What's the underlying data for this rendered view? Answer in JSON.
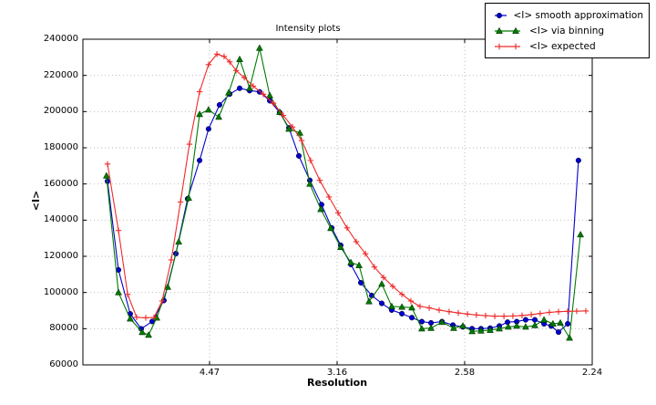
{
  "chart_data": {
    "type": "line",
    "title": "Intensity plots",
    "xlabel": "Resolution",
    "ylabel": "<I>",
    "x_axis": {
      "scale": "linear in 1/d^2 (resolution d shown in Angstrom)",
      "tick_labels": [
        "4.47",
        "3.16",
        "2.58",
        "2.24"
      ],
      "tick_positions_s2": [
        0.05,
        0.1,
        0.15,
        0.2
      ],
      "min_s2": 0.00036,
      "max_s2": 0.2
    },
    "y_axis": {
      "tick_values": [
        60000,
        80000,
        100000,
        120000,
        140000,
        160000,
        180000,
        200000,
        220000,
        240000
      ],
      "min": 60000,
      "max": 240000
    },
    "grid": "dotted",
    "legend_position": "upper right, partly outside axes",
    "series": [
      {
        "name": "<I> smooth approximation",
        "color": "#0000cc",
        "marker": "circle",
        "points": [
          [
            0.01,
            161500
          ],
          [
            0.0143,
            112500
          ],
          [
            0.0189,
            88200
          ],
          [
            0.0232,
            79900
          ],
          [
            0.0275,
            84000
          ],
          [
            0.0321,
            95600
          ],
          [
            0.0368,
            121500
          ],
          [
            0.0414,
            151800
          ],
          [
            0.0461,
            173000
          ],
          [
            0.0496,
            190400
          ],
          [
            0.0539,
            203700
          ],
          [
            0.0579,
            209700
          ],
          [
            0.0618,
            212900
          ],
          [
            0.0657,
            211600
          ],
          [
            0.0696,
            210900
          ],
          [
            0.0736,
            206000
          ],
          [
            0.0775,
            199500
          ],
          [
            0.0811,
            191000
          ],
          [
            0.085,
            175500
          ],
          [
            0.0893,
            162000
          ],
          [
            0.0939,
            148600
          ],
          [
            0.0979,
            135700
          ],
          [
            0.1014,
            126100
          ],
          [
            0.1054,
            115500
          ],
          [
            0.1093,
            105400
          ],
          [
            0.1136,
            98300
          ],
          [
            0.1175,
            94000
          ],
          [
            0.1214,
            90300
          ],
          [
            0.1254,
            88300
          ],
          [
            0.1293,
            86100
          ],
          [
            0.1332,
            83900
          ],
          [
            0.1368,
            83200
          ],
          [
            0.1411,
            83900
          ],
          [
            0.1454,
            82000
          ],
          [
            0.1493,
            81000
          ],
          [
            0.1529,
            80000
          ],
          [
            0.1564,
            80000
          ],
          [
            0.16,
            80300
          ],
          [
            0.1636,
            81500
          ],
          [
            0.1668,
            83600
          ],
          [
            0.1704,
            83900
          ],
          [
            0.1739,
            84900
          ],
          [
            0.1775,
            84900
          ],
          [
            0.1811,
            82700
          ],
          [
            0.1839,
            81500
          ],
          [
            0.1868,
            78100
          ],
          [
            0.1904,
            82700
          ],
          [
            0.1946,
            173000
          ]
        ]
      },
      {
        "name": "<I> via binning",
        "color": "#007a00",
        "marker": "triangle",
        "points": [
          [
            0.0096,
            164500
          ],
          [
            0.0143,
            100000
          ],
          [
            0.0189,
            85500
          ],
          [
            0.0236,
            78000
          ],
          [
            0.0261,
            76500
          ],
          [
            0.0293,
            86000
          ],
          [
            0.0336,
            103000
          ],
          [
            0.0379,
            128000
          ],
          [
            0.0418,
            152200
          ],
          [
            0.0461,
            198500
          ],
          [
            0.0496,
            201000
          ],
          [
            0.0536,
            197000
          ],
          [
            0.0575,
            210400
          ],
          [
            0.0618,
            228900
          ],
          [
            0.0657,
            212900
          ],
          [
            0.0696,
            235100
          ],
          [
            0.0736,
            208900
          ],
          [
            0.0775,
            199700
          ],
          [
            0.0811,
            190400
          ],
          [
            0.0854,
            188200
          ],
          [
            0.0893,
            160000
          ],
          [
            0.0936,
            146000
          ],
          [
            0.0975,
            135500
          ],
          [
            0.1014,
            125000
          ],
          [
            0.1054,
            116600
          ],
          [
            0.1086,
            115000
          ],
          [
            0.1125,
            95000
          ],
          [
            0.1175,
            104700
          ],
          [
            0.1214,
            92300
          ],
          [
            0.1254,
            92000
          ],
          [
            0.1293,
            91600
          ],
          [
            0.1332,
            80000
          ],
          [
            0.1368,
            80300
          ],
          [
            0.1411,
            83600
          ],
          [
            0.1457,
            80300
          ],
          [
            0.1493,
            81500
          ],
          [
            0.1529,
            78500
          ],
          [
            0.1564,
            78800
          ],
          [
            0.16,
            79200
          ],
          [
            0.1636,
            80000
          ],
          [
            0.1671,
            81000
          ],
          [
            0.1704,
            81500
          ],
          [
            0.1739,
            81000
          ],
          [
            0.1775,
            81800
          ],
          [
            0.1811,
            84900
          ],
          [
            0.1846,
            82700
          ],
          [
            0.1875,
            83200
          ],
          [
            0.1911,
            74900
          ],
          [
            0.1954,
            132000
          ]
        ]
      },
      {
        "name": "<I> expected",
        "color": "#ee2a2a",
        "marker": "plus",
        "points": [
          [
            0.01,
            171000
          ],
          [
            0.0143,
            134300
          ],
          [
            0.0179,
            99000
          ],
          [
            0.0214,
            86300
          ],
          [
            0.025,
            86000
          ],
          [
            0.0282,
            86200
          ],
          [
            0.0314,
            95300
          ],
          [
            0.035,
            118000
          ],
          [
            0.0386,
            150000
          ],
          [
            0.0421,
            182000
          ],
          [
            0.0461,
            211000
          ],
          [
            0.0496,
            226000
          ],
          [
            0.0529,
            231800
          ],
          [
            0.0557,
            230500
          ],
          [
            0.0579,
            227500
          ],
          [
            0.0604,
            222700
          ],
          [
            0.0636,
            218800
          ],
          [
            0.0671,
            214100
          ],
          [
            0.0711,
            209600
          ],
          [
            0.075,
            204600
          ],
          [
            0.0789,
            197900
          ],
          [
            0.0825,
            191500
          ],
          [
            0.0861,
            184000
          ],
          [
            0.0896,
            173000
          ],
          [
            0.0932,
            162000
          ],
          [
            0.0968,
            152800
          ],
          [
            0.1004,
            144000
          ],
          [
            0.1039,
            135700
          ],
          [
            0.1075,
            128100
          ],
          [
            0.1111,
            121400
          ],
          [
            0.1146,
            114100
          ],
          [
            0.1182,
            108300
          ],
          [
            0.1218,
            103400
          ],
          [
            0.1254,
            99000
          ],
          [
            0.1289,
            95300
          ],
          [
            0.1325,
            92300
          ],
          [
            0.1361,
            91500
          ],
          [
            0.14,
            90300
          ],
          [
            0.1439,
            89400
          ],
          [
            0.1475,
            88700
          ],
          [
            0.1511,
            88100
          ],
          [
            0.1546,
            87600
          ],
          [
            0.1582,
            87200
          ],
          [
            0.1618,
            86900
          ],
          [
            0.1654,
            86900
          ],
          [
            0.1689,
            87000
          ],
          [
            0.1725,
            87300
          ],
          [
            0.1761,
            87800
          ],
          [
            0.1796,
            88400
          ],
          [
            0.1832,
            89000
          ],
          [
            0.1868,
            89400
          ],
          [
            0.1904,
            89600
          ],
          [
            0.1939,
            89700
          ],
          [
            0.1975,
            89800
          ]
        ]
      }
    ],
    "style": {
      "grid_color": "#b3b3b3",
      "spine_color": "#000000",
      "background": "#ffffff"
    }
  }
}
